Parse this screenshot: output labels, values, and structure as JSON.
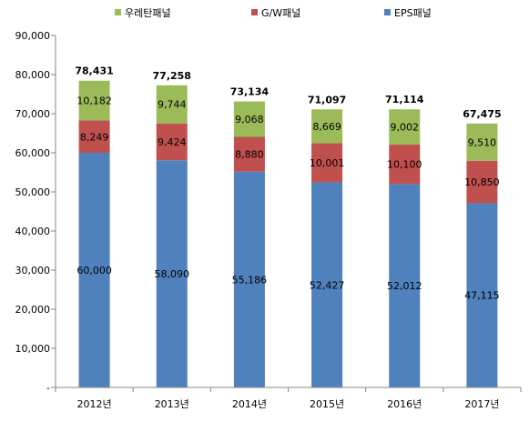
{
  "chart_data": {
    "type": "bar",
    "stacked": true,
    "categories": [
      "2012년",
      "2013년",
      "2014년",
      "2015년",
      "2016년",
      "2017년"
    ],
    "series": [
      {
        "name": "EPS패널",
        "color": "#4F81BD",
        "values": [
          60000,
          58090,
          55186,
          52427,
          52012,
          47115
        ],
        "labels": [
          "60,000",
          "58,090",
          "55,186",
          "52,427",
          "52,012",
          "47,115"
        ]
      },
      {
        "name": "G/W패널",
        "color": "#C0504D",
        "values": [
          8249,
          9424,
          8880,
          10001,
          10100,
          10850
        ],
        "labels": [
          "8,249",
          "9,424",
          "8,880",
          "10,001",
          "10,100",
          "10,850"
        ]
      },
      {
        "name": "우레탄패널",
        "color": "#9BBB59",
        "values": [
          10182,
          9744,
          9068,
          8669,
          9002,
          9510
        ],
        "labels": [
          "10,182",
          "9,744",
          "9,068",
          "8,669",
          "9,002",
          "9,510"
        ]
      }
    ],
    "totals": [
      78431,
      77258,
      73134,
      71097,
      71114,
      67475
    ],
    "total_labels": [
      "78,431",
      "77,258",
      "73,134",
      "71,097",
      "71,114",
      "67,475"
    ],
    "legend_order": [
      "우레탄패널",
      "G/W패널",
      "EPS패널"
    ],
    "legend_position": "top",
    "y_ticks": [
      0,
      10000,
      20000,
      30000,
      40000,
      50000,
      60000,
      70000,
      80000,
      90000
    ],
    "y_tick_labels": [
      "-",
      "10,000",
      "20,000",
      "30,000",
      "40,000",
      "50,000",
      "60,000",
      "70,000",
      "80,000",
      "90,000"
    ],
    "ylim": [
      0,
      90000
    ],
    "grid": false,
    "title": "",
    "xlabel": "",
    "ylabel": ""
  }
}
